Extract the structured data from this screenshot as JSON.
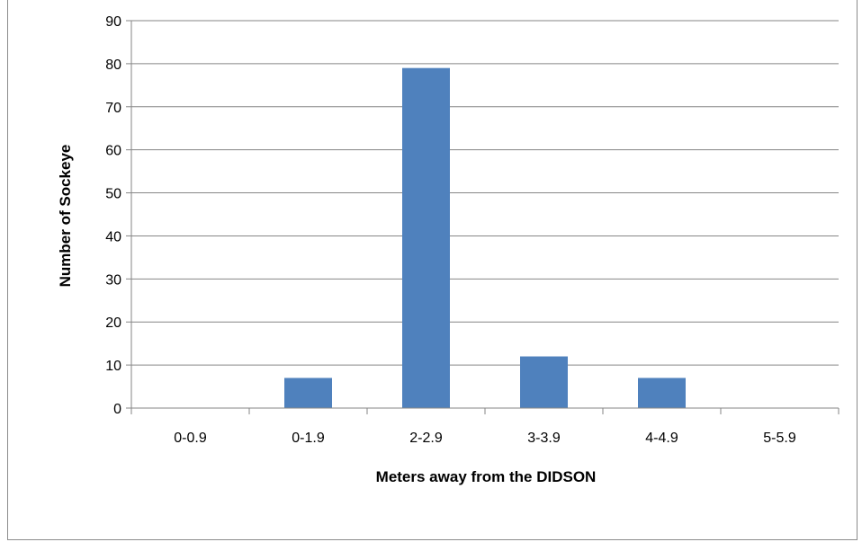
{
  "chart_data": {
    "type": "bar",
    "categories": [
      "0-0.9",
      "0-1.9",
      "2-2.9",
      "3-3.9",
      "4-4.9",
      "5-5.9"
    ],
    "values": [
      0,
      7,
      79,
      12,
      7,
      0
    ],
    "xlabel": "Meters away from the DIDSON",
    "ylabel": "Number of Sockeye",
    "ylim": [
      0,
      90
    ],
    "yticks": [
      0,
      10,
      20,
      30,
      40,
      50,
      60,
      70,
      80,
      90
    ],
    "grid": true,
    "legend": false,
    "colors": {
      "bar": "#4f81bd",
      "gridline": "#868686",
      "axis": "#868686"
    }
  }
}
